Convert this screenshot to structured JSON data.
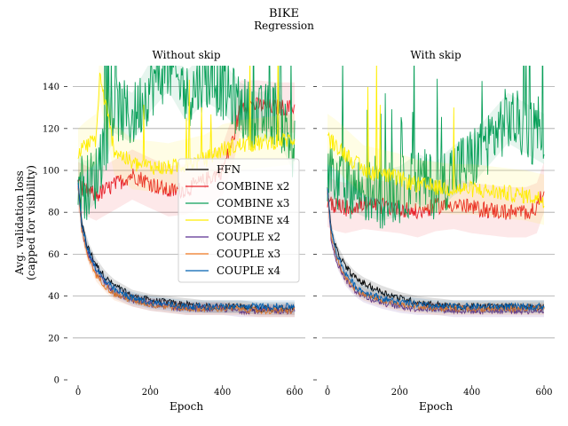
{
  "figure": {
    "title": "BIKE",
    "subtitle": "Regression"
  },
  "chart_data": [
    {
      "type": "line",
      "panel_title": "Without skip",
      "xlabel": "Epoch",
      "ylabel": [
        "Avg. validation loss",
        "(capped for visibility)"
      ],
      "xlim": [
        0,
        600
      ],
      "ylim": [
        0,
        150
      ],
      "xticks": [
        0,
        200,
        400,
        600
      ],
      "yticks": [
        0,
        20,
        40,
        60,
        80,
        100,
        120,
        140
      ],
      "grid": "horizontal",
      "legend_position": "right",
      "series": [
        {
          "name": "FFN",
          "color": "#000000",
          "x": [
            0,
            10,
            25,
            50,
            75,
            100,
            150,
            200,
            250,
            300,
            350,
            400,
            450,
            500,
            550,
            600
          ],
          "y": [
            95,
            75,
            64,
            55,
            49,
            45,
            40,
            38,
            37,
            36,
            35,
            35,
            35,
            34,
            34,
            34
          ]
        },
        {
          "name": "COMBINE x2",
          "color": "#e8202a",
          "x": [
            0,
            25,
            50,
            100,
            150,
            200,
            250,
            300,
            350,
            400,
            430,
            450,
            500,
            550,
            600
          ],
          "y": [
            92,
            90,
            88,
            93,
            98,
            94,
            90,
            91,
            95,
            100,
            115,
            131,
            131,
            130,
            130
          ]
        },
        {
          "name": "COMBINE x3",
          "color": "#0aa05a",
          "x": [
            0,
            25,
            50,
            100,
            150,
            200,
            250,
            300,
            350,
            400,
            450,
            500,
            550,
            600
          ],
          "y": [
            95,
            92,
            97,
            130,
            125,
            140,
            150,
            135,
            145,
            140,
            130,
            125,
            128,
            110
          ]
        },
        {
          "name": "COMBINE x4",
          "color": "#ffee00",
          "x": [
            0,
            25,
            50,
            60,
            100,
            150,
            200,
            250,
            300,
            350,
            400,
            450,
            500,
            550,
            600
          ],
          "y": [
            108,
            112,
            115,
            145,
            110,
            103,
            102,
            101,
            103,
            105,
            110,
            112,
            113,
            114,
            115
          ]
        },
        {
          "name": "COUPLE x2",
          "color": "#5a2d91",
          "x": [
            0,
            10,
            25,
            50,
            75,
            100,
            150,
            200,
            250,
            300,
            350,
            400,
            450,
            500,
            550,
            600
          ],
          "y": [
            93,
            72,
            61,
            52,
            46,
            42,
            38,
            36,
            35,
            34,
            34,
            34,
            33,
            33,
            33,
            33
          ]
        },
        {
          "name": "COUPLE x3",
          "color": "#f07820",
          "x": [
            0,
            10,
            25,
            50,
            75,
            100,
            150,
            200,
            250,
            300,
            350,
            400,
            450,
            500,
            550,
            600
          ],
          "y": [
            92,
            71,
            60,
            50,
            45,
            41,
            38,
            36,
            35,
            34,
            34,
            34,
            34,
            33,
            33,
            33
          ]
        },
        {
          "name": "COUPLE x4",
          "color": "#0060b0",
          "x": [
            0,
            10,
            25,
            50,
            75,
            100,
            150,
            200,
            250,
            300,
            350,
            400,
            450,
            500,
            550,
            600
          ],
          "y": [
            94,
            74,
            63,
            53,
            47,
            43,
            39,
            37,
            36,
            35,
            35,
            35,
            35,
            35,
            35,
            35
          ]
        }
      ]
    },
    {
      "type": "line",
      "panel_title": "With skip",
      "xlabel": "Epoch",
      "xlim": [
        0,
        600
      ],
      "ylim": [
        0,
        150
      ],
      "xticks": [
        0,
        200,
        400,
        600
      ],
      "yticks": [
        0,
        20,
        40,
        60,
        80,
        100,
        120,
        140
      ],
      "grid": "horizontal",
      "series": [
        {
          "name": "FFN",
          "color": "#000000",
          "x": [
            0,
            10,
            25,
            50,
            75,
            100,
            150,
            200,
            250,
            300,
            350,
            400,
            450,
            500,
            550,
            600
          ],
          "y": [
            92,
            72,
            62,
            54,
            49,
            46,
            42,
            39,
            37,
            36,
            35,
            35,
            35,
            35,
            35,
            35
          ]
        },
        {
          "name": "COMBINE x2",
          "color": "#e8202a",
          "x": [
            0,
            25,
            50,
            100,
            150,
            200,
            250,
            300,
            350,
            400,
            450,
            500,
            550,
            580,
            600
          ],
          "y": [
            85,
            83,
            82,
            84,
            83,
            82,
            80,
            83,
            84,
            82,
            81,
            80,
            80,
            82,
            92
          ]
        },
        {
          "name": "COMBINE x3",
          "color": "#0aa05a",
          "x": [
            0,
            25,
            50,
            100,
            150,
            200,
            250,
            300,
            350,
            400,
            450,
            500,
            550,
            600
          ],
          "y": [
            97,
            92,
            94,
            90,
            88,
            90,
            96,
            92,
            100,
            105,
            115,
            125,
            120,
            115
          ]
        },
        {
          "name": "COMBINE x4",
          "color": "#ffee00",
          "x": [
            0,
            25,
            50,
            100,
            150,
            200,
            250,
            300,
            350,
            400,
            450,
            500,
            550,
            600
          ],
          "y": [
            115,
            112,
            108,
            100,
            98,
            96,
            93,
            92,
            91,
            91,
            90,
            89,
            88,
            86
          ]
        },
        {
          "name": "COUPLE x2",
          "color": "#5a2d91",
          "x": [
            0,
            10,
            25,
            50,
            75,
            100,
            150,
            200,
            250,
            300,
            350,
            400,
            450,
            500,
            550,
            600
          ],
          "y": [
            90,
            68,
            57,
            48,
            43,
            40,
            37,
            35,
            34,
            34,
            33,
            33,
            33,
            33,
            33,
            33
          ]
        },
        {
          "name": "COUPLE x3",
          "color": "#f07820",
          "x": [
            0,
            10,
            25,
            50,
            75,
            100,
            150,
            200,
            250,
            300,
            350,
            400,
            450,
            500,
            550,
            600
          ],
          "y": [
            91,
            70,
            58,
            49,
            44,
            41,
            38,
            36,
            35,
            34,
            34,
            34,
            34,
            34,
            34,
            34
          ]
        },
        {
          "name": "COUPLE x4",
          "color": "#0060b0",
          "x": [
            0,
            10,
            25,
            50,
            75,
            100,
            150,
            200,
            250,
            300,
            350,
            400,
            450,
            500,
            550,
            600
          ],
          "y": [
            92,
            71,
            60,
            51,
            45,
            42,
            39,
            37,
            36,
            35,
            35,
            35,
            35,
            35,
            35,
            35
          ]
        }
      ]
    }
  ]
}
